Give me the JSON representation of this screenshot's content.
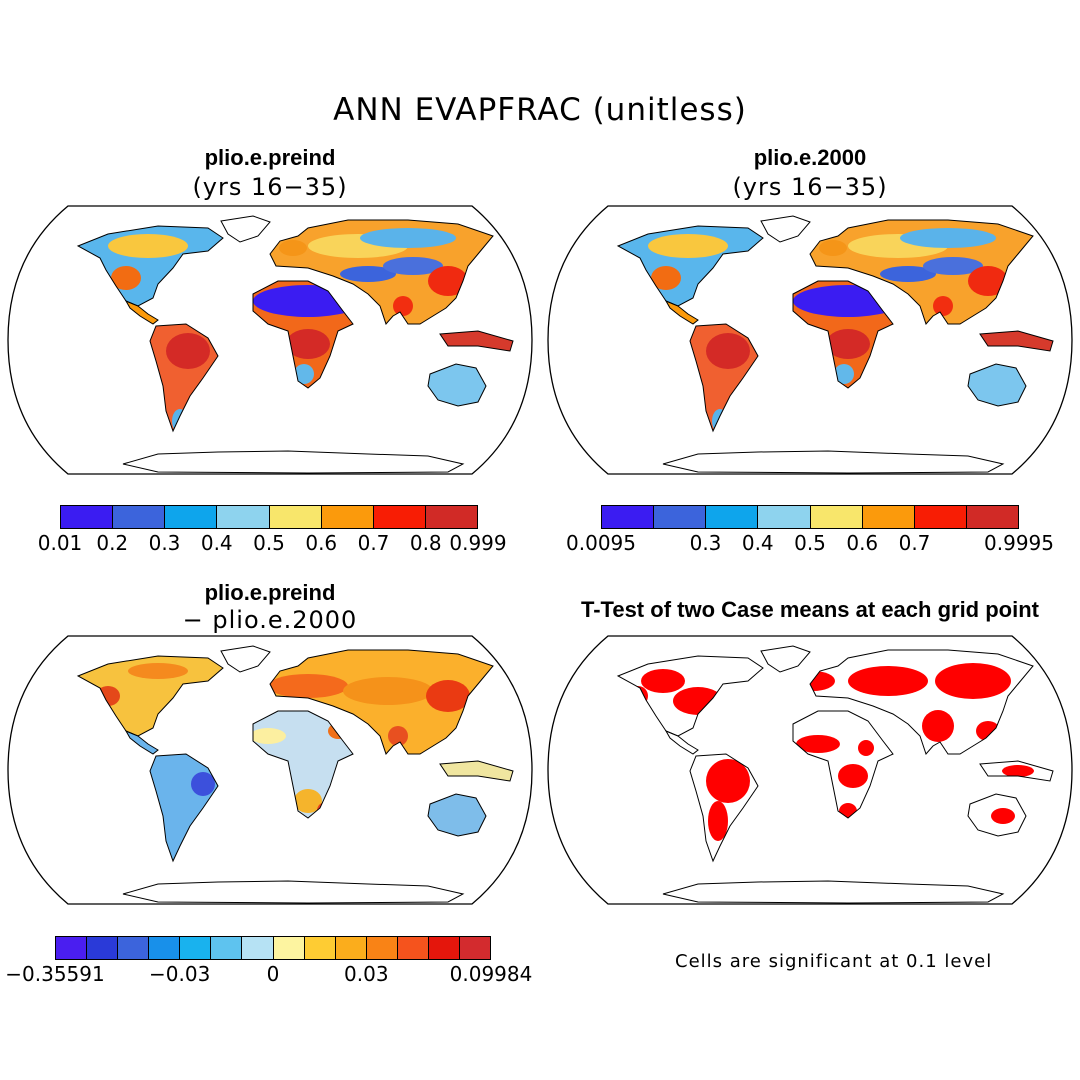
{
  "figure": {
    "title": "ANN EVAPFRAC (unitless)"
  },
  "panels": [
    {
      "title": "plio.e.preind",
      "subtitle": "(yrs 16−35)",
      "colorbar": {
        "ticks": [
          "0.01",
          "0.2",
          "0.3",
          "0.4",
          "0.5",
          "0.6",
          "0.7",
          "0.8",
          "0.999"
        ],
        "colors": [
          "#3b1cf2",
          "#3c64dc",
          "#0ea5ec",
          "#8ed3ee",
          "#f8e66b",
          "#fb9a0c",
          "#f81d04",
          "#d12a26"
        ]
      }
    },
    {
      "title": "plio.e.2000",
      "subtitle": "(yrs 16−35)",
      "colorbar": {
        "ticks": [
          "0.0095",
          "0.3",
          "0.4",
          "0.5",
          "0.6",
          "0.7",
          "0.9995"
        ],
        "colors": [
          "#3b1cf2",
          "#3c64dc",
          "#0ea5ec",
          "#8ed3ee",
          "#f8e66b",
          "#fb9a0c",
          "#f81d04",
          "#d12a26"
        ]
      }
    },
    {
      "title": "plio.e.preind",
      "subtitle": "− plio.e.2000",
      "colorbar": {
        "ticks": [
          "−0.35591",
          "−0.03",
          "0",
          "0.03",
          "0.09984"
        ],
        "colors": [
          "#4a1ef0",
          "#2a3ad8",
          "#3c64dc",
          "#1890ea",
          "#19b2ee",
          "#5ec3ef",
          "#b6e2f4",
          "#fdf4a0",
          "#fecc33",
          "#fbad1c",
          "#f98316",
          "#f5531d",
          "#e4160c",
          "#d32b2e"
        ]
      }
    },
    {
      "title": "T-Test of two Case means at each grid point",
      "note": "Cells are significant at 0.1 level"
    }
  ]
}
